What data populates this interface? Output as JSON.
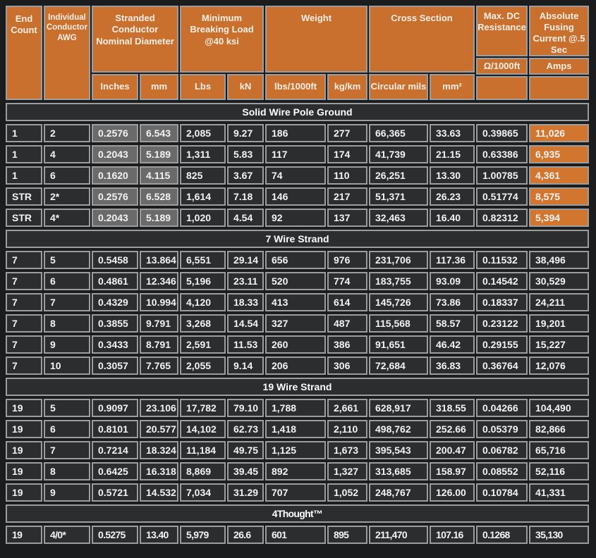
{
  "colors": {
    "orange_header": "#c9702e",
    "orange_amps_cells": "#d2762f",
    "row_background": "#2b2d2f",
    "page_background": "#1a1c1e",
    "grid_border": "#9d9d9d",
    "diameter_highlight": "#6b6a6b"
  },
  "header": {
    "end_count": "End Count",
    "awg": "Individual Conductor AWG",
    "groups": [
      {
        "label": "Stranded Conductor Nominal Diameter",
        "units": [
          "Inches",
          "mm"
        ]
      },
      {
        "label": "Minimum Breaking Load @40 ksi",
        "units": [
          "Lbs",
          "kN"
        ]
      },
      {
        "label": "Weight",
        "units": [
          "lbs/1000ft",
          "kg/km"
        ]
      },
      {
        "label": "Cross Section",
        "units": [
          "Circular mils",
          "mm²"
        ]
      }
    ],
    "resistance": {
      "label": "Max. DC Resistance",
      "unit": "Ω/1000ft"
    },
    "fusing": {
      "label": "Absolute Fusing Current @.5 Sec",
      "unit": "Amps"
    }
  },
  "columns": [
    "End Count",
    "Individual Conductor AWG",
    "Inches",
    "mm",
    "Lbs",
    "kN",
    "lbs/1000ft",
    "kg/km",
    "Circular mils",
    "mm²",
    "Ω/1000ft",
    "Amps"
  ],
  "sections": [
    {
      "title": "Solid Wire Pole Ground",
      "highlight_diameter": true,
      "highlight_amps": true,
      "rows": [
        [
          "1",
          "2",
          "0.2576",
          "6.543",
          "2,085",
          "9.27",
          "186",
          "277",
          "66,365",
          "33.63",
          "0.39865",
          "11,026"
        ],
        [
          "1",
          "4",
          "0.2043",
          "5.189",
          "1,311",
          "5.83",
          "117",
          "174",
          "41,739",
          "21.15",
          "0.63386",
          "6,935"
        ],
        [
          "1",
          "6",
          "0.1620",
          "4.115",
          "825",
          "3.67",
          "74",
          "110",
          "26,251",
          "13.30",
          "1.00785",
          "4,361"
        ],
        [
          "STR",
          "2*",
          "0.2576",
          "6.528",
          "1,614",
          "7.18",
          "146",
          "217",
          "51,371",
          "26.23",
          "0.51774",
          "8,575"
        ],
        [
          "STR",
          "4*",
          "0.2043",
          "5.189",
          "1,020",
          "4.54",
          "92",
          "137",
          "32,463",
          "16.40",
          "0.82312",
          "5,394"
        ]
      ]
    },
    {
      "title": "7 Wire Strand",
      "rows": [
        [
          "7",
          "5",
          "0.5458",
          "13.864",
          "6,551",
          "29.14",
          "656",
          "976",
          "231,706",
          "117.36",
          "0.11532",
          "38,496"
        ],
        [
          "7",
          "6",
          "0.4861",
          "12.346",
          "5,196",
          "23.11",
          "520",
          "774",
          "183,755",
          "93.09",
          "0.14542",
          "30,529"
        ],
        [
          "7",
          "7",
          "0.4329",
          "10.994",
          "4,120",
          "18.33",
          "413",
          "614",
          "145,726",
          "73.86",
          "0.18337",
          "24,211"
        ],
        [
          "7",
          "8",
          "0.3855",
          "9.791",
          "3,268",
          "14.54",
          "327",
          "487",
          "115,568",
          "58.57",
          "0.23122",
          "19,201"
        ],
        [
          "7",
          "9",
          "0.3433",
          "8.791",
          "2,591",
          "11.53",
          "260",
          "386",
          "91,651",
          "46.42",
          "0.29155",
          "15,227"
        ],
        [
          "7",
          "10",
          "0.3057",
          "7.765",
          "2,055",
          "9.14",
          "206",
          "306",
          "72,684",
          "36.83",
          "0.36764",
          "12,076"
        ]
      ]
    },
    {
      "title": "19 Wire Strand",
      "rows": [
        [
          "19",
          "5",
          "0.9097",
          "23.106",
          "17,782",
          "79.10",
          "1,788",
          "2,661",
          "628,917",
          "318.55",
          "0.04266",
          "104,490"
        ],
        [
          "19",
          "6",
          "0.8101",
          "20.577",
          "14,102",
          "62.73",
          "1,418",
          "2,110",
          "498,762",
          "252.66",
          "0.05379",
          "82,866"
        ],
        [
          "19",
          "7",
          "0.7214",
          "18.324",
          "11,184",
          "49.75",
          "1,125",
          "1,673",
          "395,543",
          "200.47",
          "0.06782",
          "65,716"
        ],
        [
          "19",
          "8",
          "0.6425",
          "16.318",
          "8,869",
          "39.45",
          "892",
          "1,327",
          "313,685",
          "158.97",
          "0.08552",
          "52,116"
        ],
        [
          "19",
          "9",
          "0.5721",
          "14.532",
          "7,034",
          "31.29",
          "707",
          "1,052",
          "248,767",
          "126.00",
          "0.10784",
          "41,331"
        ]
      ]
    },
    {
      "title": "4Thought™",
      "condensed": true,
      "rows": [
        [
          "19",
          "4/0*",
          "0.5275",
          "13.40",
          "5,979",
          "26.6",
          "601",
          "895",
          "211,470",
          "107.16",
          "0.1268",
          "35,130"
        ]
      ]
    }
  ]
}
